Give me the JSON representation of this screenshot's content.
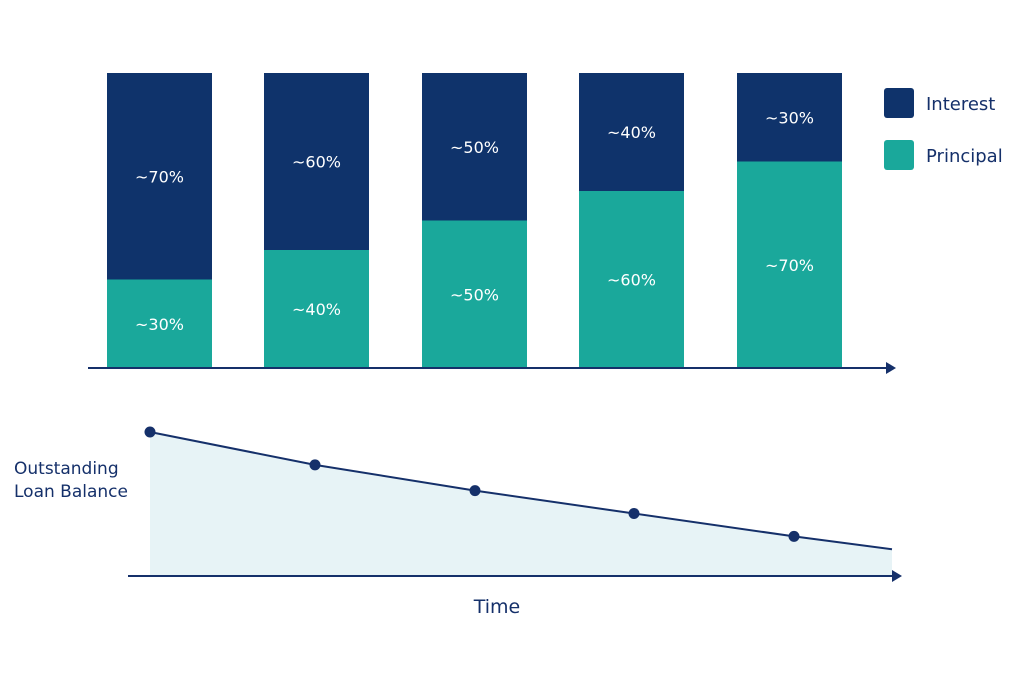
{
  "colors": {
    "interest": "#0f336b",
    "principal": "#1aa89b",
    "axis": "#15306a",
    "area_fill": "#e7f3f6",
    "line": "#15306a",
    "label_text": "#ffffff",
    "title_text": "#15306a"
  },
  "chart_data": [
    {
      "type": "bar",
      "stacked": true,
      "percent_stacked": true,
      "categories": [
        "",
        "",
        "",
        "",
        ""
      ],
      "series": [
        {
          "name": "Principal",
          "values": [
            30,
            40,
            50,
            60,
            70
          ],
          "labels": [
            "~30%",
            "~40%",
            "~50%",
            "~60%",
            "~70%"
          ]
        },
        {
          "name": "Interest",
          "values": [
            70,
            60,
            50,
            40,
            30
          ],
          "labels": [
            "~70%",
            "~60%",
            "~50%",
            "~40%",
            "~30%"
          ]
        }
      ],
      "ylim": [
        0,
        100
      ],
      "legend": {
        "position": "right",
        "entries": [
          "Interest",
          "Principal"
        ]
      },
      "grid": false
    },
    {
      "type": "area",
      "title": "",
      "xlabel": "Time",
      "ylabel": "Outstanding Loan Balance",
      "x": [
        0,
        1,
        2,
        3,
        4
      ],
      "series": [
        {
          "name": "",
          "values": [
            100,
            77,
            59,
            43,
            27
          ]
        }
      ],
      "line_end_value": 18,
      "markers": true,
      "grid": false
    }
  ]
}
